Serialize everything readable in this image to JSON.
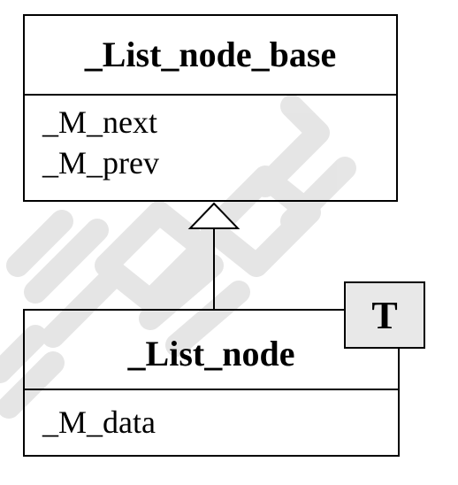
{
  "diagram": {
    "base_class": {
      "name": "_List_node_base",
      "attributes": [
        "_M_next",
        "_M_prev"
      ]
    },
    "derived_class": {
      "name": "_List_node",
      "attributes": [
        "_M_data"
      ],
      "template_parameter": "T"
    },
    "relationship": "inheritance"
  },
  "colors": {
    "line": "#000000",
    "template_fill": "#e8e8e8",
    "watermark": "#d9d9d9"
  }
}
